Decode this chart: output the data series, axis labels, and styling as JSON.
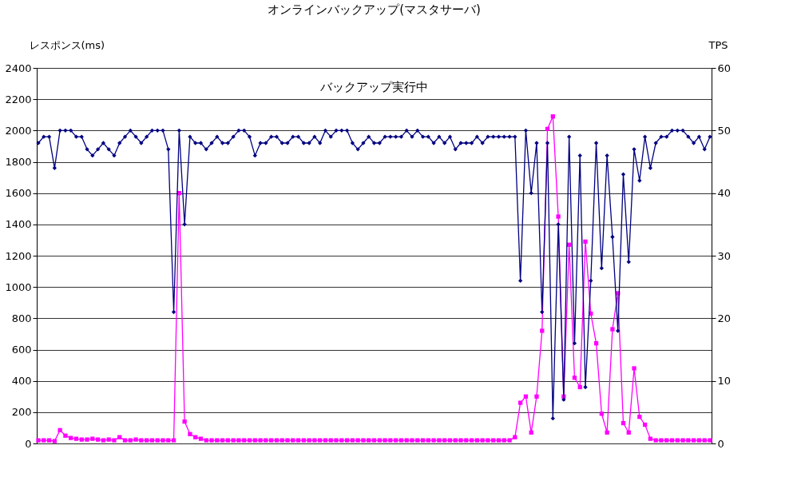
{
  "chart_data": {
    "type": "line",
    "title": "オンラインバックアップ(マスタサーバ)",
    "ylabel": "レスポンス(ms)",
    "y2label": "TPS",
    "annotations": [
      "バックアップ実行中"
    ],
    "categories": [
      null,
      null,
      null,
      null,
      null,
      null,
      null,
      null,
      null,
      null,
      null,
      null,
      null,
      null,
      null,
      null,
      null,
      null,
      null,
      null,
      null,
      null,
      null,
      null,
      null,
      null,
      null,
      null,
      null,
      null,
      null,
      null,
      null,
      null,
      null,
      null,
      null,
      null,
      null,
      null,
      null,
      null,
      null,
      null,
      null,
      null,
      null,
      null,
      null,
      null,
      null,
      null,
      null,
      null,
      null,
      null,
      null,
      null,
      null,
      null,
      null,
      null,
      null,
      null,
      null,
      null,
      null,
      null,
      null,
      null,
      null,
      null,
      null,
      null,
      null,
      null,
      null,
      null,
      null,
      null,
      null,
      null,
      null,
      null,
      null,
      null,
      null,
      null,
      null,
      null,
      null,
      null,
      null,
      null,
      null,
      null,
      null,
      null,
      null,
      null,
      null,
      null,
      null,
      null,
      null,
      null,
      null,
      null,
      null,
      null,
      null,
      null,
      null,
      null,
      null,
      null,
      null,
      null,
      null,
      null,
      null,
      null,
      null,
      null,
      null
    ],
    "series": [
      {
        "color": "#000080",
        "axis": "y2",
        "marker": "diamond",
        "values": [
          48,
          49,
          49,
          44,
          50,
          50,
          50,
          49,
          49,
          47,
          46,
          47,
          48,
          47,
          46,
          48,
          49,
          50,
          49,
          48,
          49,
          50,
          50,
          50,
          47,
          21,
          50,
          35,
          49,
          48,
          48,
          47,
          48,
          49,
          48,
          48,
          49,
          50,
          50,
          49,
          46,
          48,
          48,
          49,
          49,
          48,
          48,
          49,
          49,
          48,
          48,
          49,
          48,
          50,
          49,
          50,
          50,
          50,
          48,
          47,
          48,
          49,
          48,
          48,
          49,
          49,
          49,
          49,
          50,
          49,
          50,
          49,
          49,
          48,
          49,
          48,
          49,
          47,
          48,
          48,
          48,
          49,
          48,
          49,
          49,
          49,
          49,
          49,
          49,
          26,
          50,
          40,
          48,
          21,
          48,
          4,
          35,
          7,
          49,
          16,
          46,
          9,
          26,
          48,
          28,
          46,
          33,
          18,
          43,
          29,
          47,
          42,
          49,
          44,
          48,
          49,
          49,
          50,
          50,
          50,
          49,
          48,
          49,
          47,
          49
        ]
      },
      {
        "color": "#ff00ff",
        "axis": "y",
        "marker": "square",
        "values": [
          20,
          20,
          20,
          15,
          85,
          50,
          35,
          30,
          25,
          25,
          30,
          25,
          20,
          25,
          20,
          40,
          20,
          20,
          25,
          20,
          20,
          20,
          20,
          20,
          20,
          20,
          1600,
          140,
          60,
          40,
          30,
          20,
          20,
          20,
          20,
          20,
          20,
          20,
          20,
          20,
          20,
          20,
          20,
          20,
          20,
          20,
          20,
          20,
          20,
          20,
          20,
          20,
          20,
          20,
          20,
          20,
          20,
          20,
          20,
          20,
          20,
          20,
          20,
          20,
          20,
          20,
          20,
          20,
          20,
          20,
          20,
          20,
          20,
          20,
          20,
          20,
          20,
          20,
          20,
          20,
          20,
          20,
          20,
          20,
          20,
          20,
          20,
          20,
          40,
          260,
          300,
          70,
          300,
          720,
          2010,
          2090,
          1450,
          300,
          1270,
          420,
          360,
          1290,
          830,
          640,
          190,
          70,
          730,
          960,
          130,
          70,
          480,
          170,
          120,
          30,
          20,
          20,
          20,
          20,
          20,
          20,
          20,
          20,
          20,
          20,
          20
        ]
      }
    ],
    "ylim": [
      0,
      2400
    ],
    "yticks": [
      0,
      200,
      400,
      600,
      800,
      1000,
      1200,
      1400,
      1600,
      1800,
      2000,
      2200,
      2400
    ],
    "y2lim": [
      0,
      60
    ],
    "y2ticks": [
      0,
      10,
      20,
      30,
      40,
      50,
      60
    ],
    "grid": "y",
    "line_style": "solid"
  }
}
